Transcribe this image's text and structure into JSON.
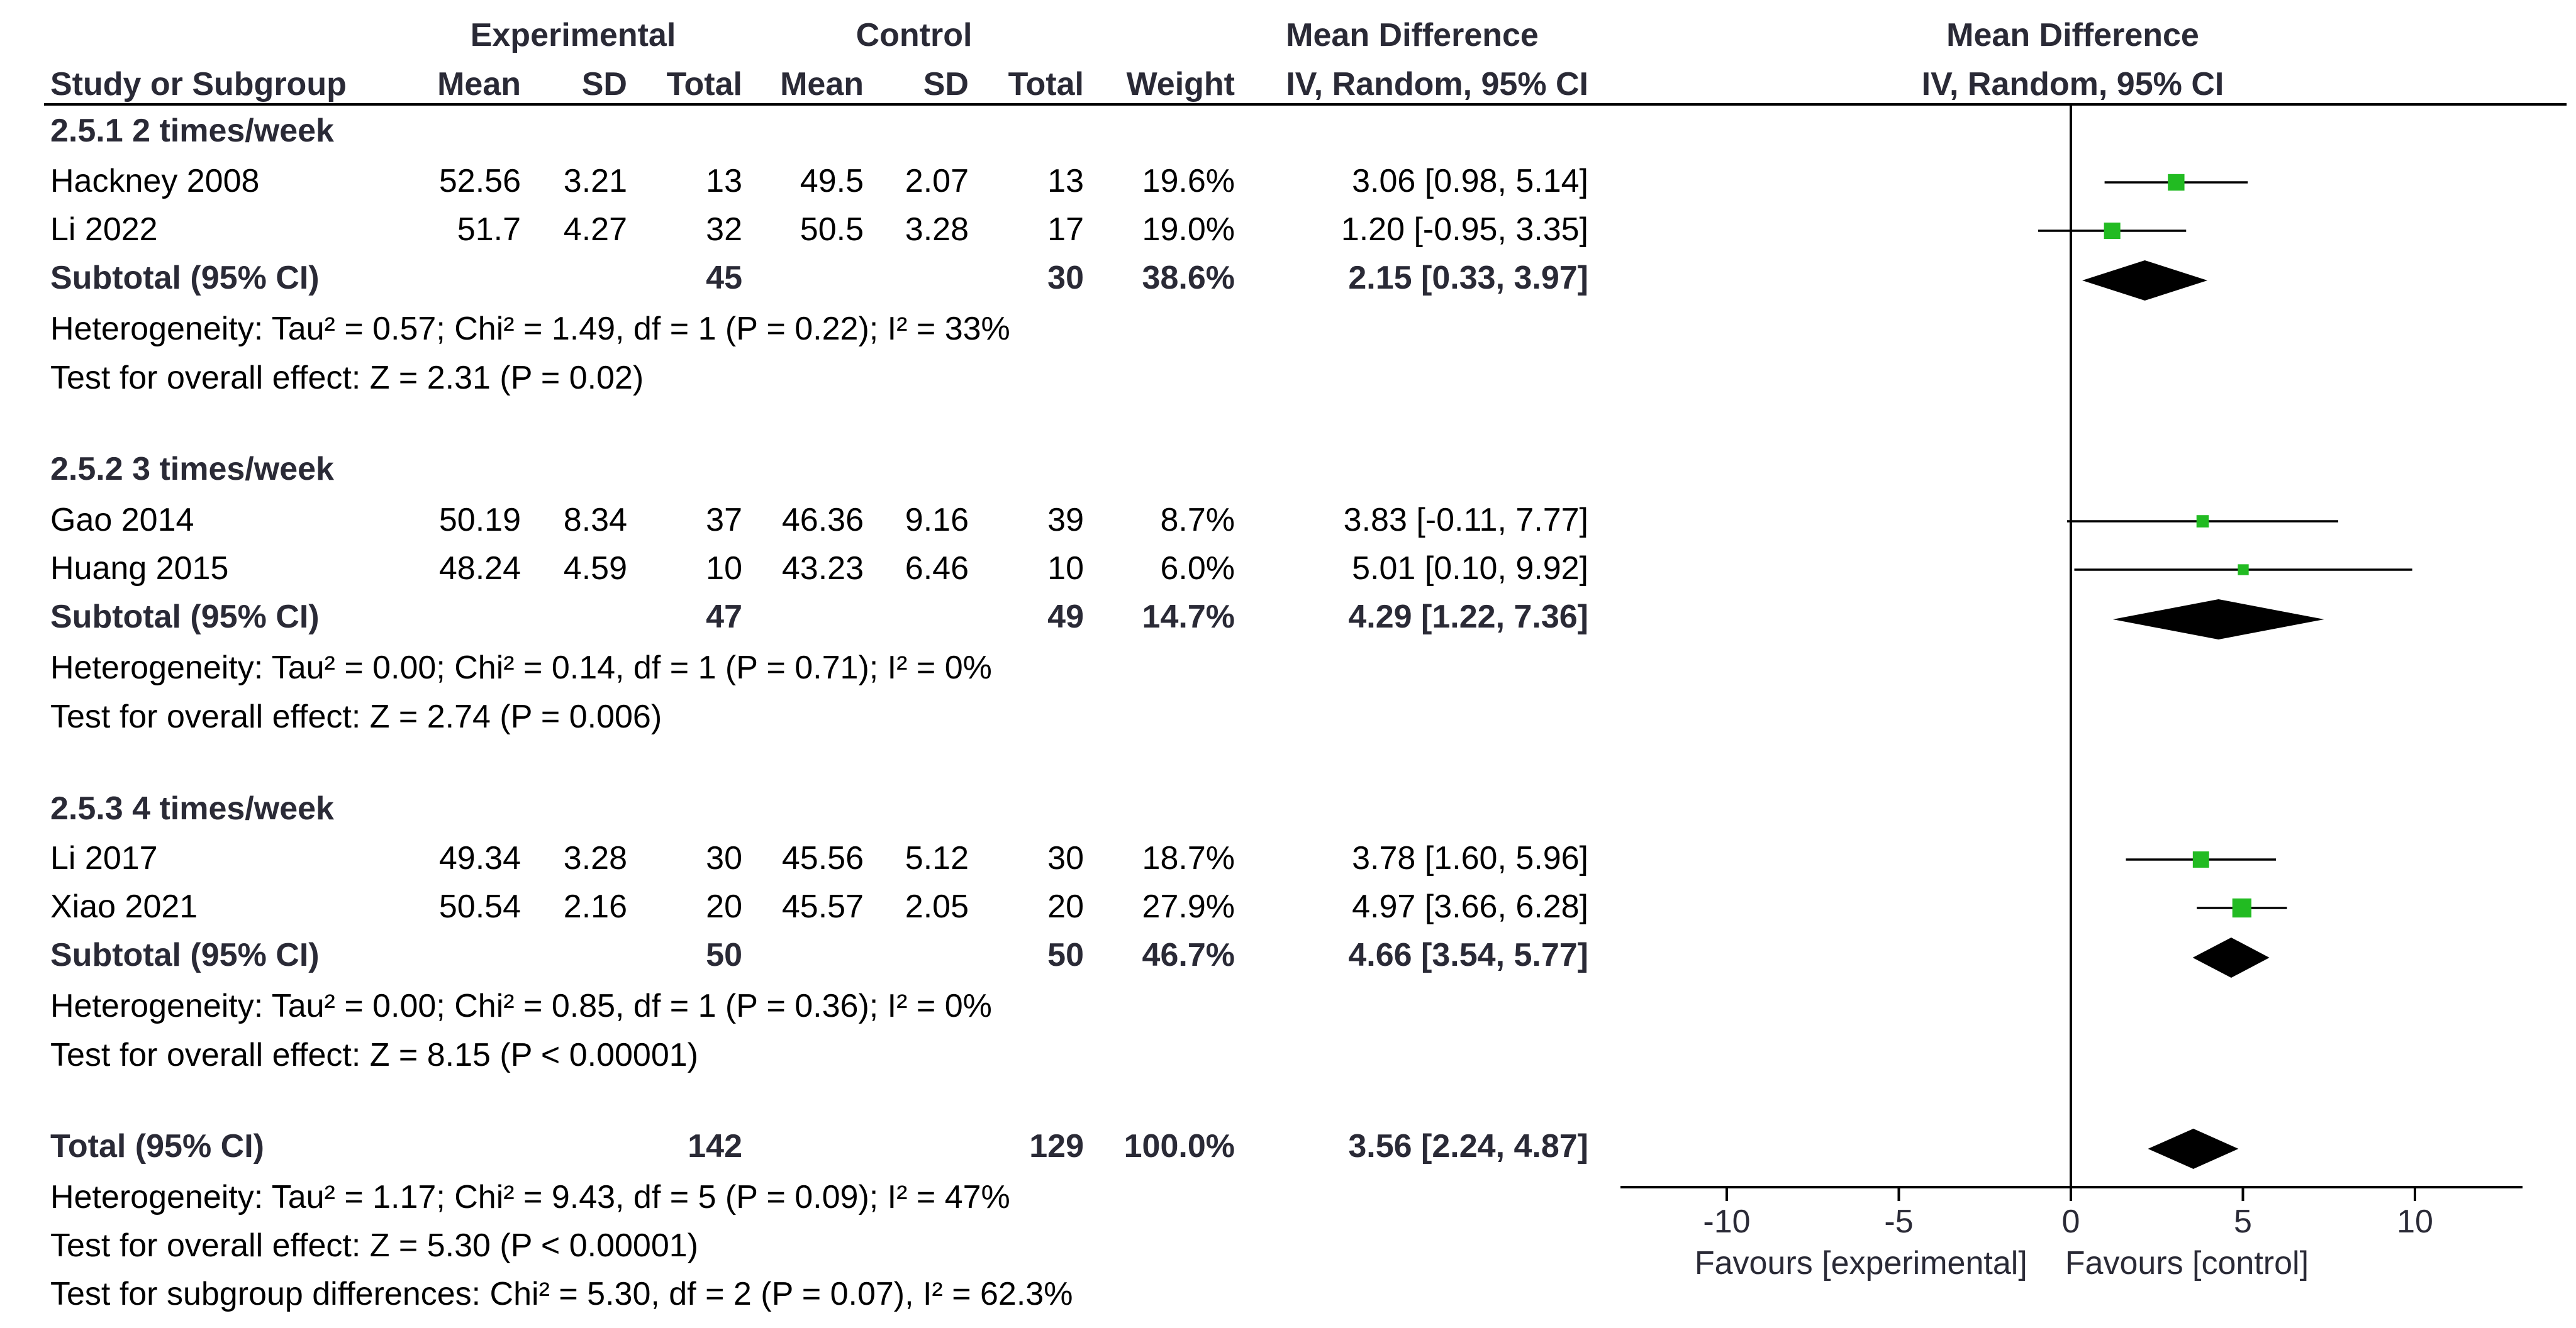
{
  "header": {
    "group_experimental": "Experimental",
    "group_control": "Control",
    "group_md": "Mean Difference",
    "col_study": "Study or Subgroup",
    "col_mean_e": "Mean",
    "col_sd_e": "SD",
    "col_total_e": "Total",
    "col_mean_c": "Mean",
    "col_sd_c": "SD",
    "col_total_c": "Total",
    "col_weight": "Weight",
    "col_ci": "IV, Random, 95% CI",
    "plot_title": "Mean Difference",
    "plot_subtitle": "IV, Random, 95% CI"
  },
  "subgroups": [
    {
      "title": "2.5.1 2 times/week",
      "studies": [
        {
          "study": "Hackney 2008",
          "mean_e": "52.56",
          "sd_e": "3.21",
          "total_e": "13",
          "mean_c": "49.5",
          "sd_c": "2.07",
          "total_c": "13",
          "weight": "19.6%",
          "ci_text": "3.06 [0.98, 5.14]"
        },
        {
          "study": "Li 2022",
          "mean_e": "51.7",
          "sd_e": "4.27",
          "total_e": "32",
          "mean_c": "50.5",
          "sd_c": "3.28",
          "total_c": "17",
          "weight": "19.0%",
          "ci_text": "1.20 [-0.95, 3.35]"
        }
      ],
      "subtotal": {
        "label": "Subtotal (95% CI)",
        "total_e": "45",
        "total_c": "30",
        "weight": "38.6%",
        "ci_text": "2.15 [0.33, 3.97]"
      },
      "heterogeneity": "Heterogeneity: Tau² = 0.57; Chi² = 1.49, df = 1 (P = 0.22); I² = 33%",
      "overall": "Test for overall effect: Z = 2.31 (P = 0.02)"
    },
    {
      "title": "2.5.2 3 times/week",
      "studies": [
        {
          "study": "Gao 2014",
          "mean_e": "50.19",
          "sd_e": "8.34",
          "total_e": "37",
          "mean_c": "46.36",
          "sd_c": "9.16",
          "total_c": "39",
          "weight": "8.7%",
          "ci_text": "3.83 [-0.11, 7.77]"
        },
        {
          "study": "Huang 2015",
          "mean_e": "48.24",
          "sd_e": "4.59",
          "total_e": "10",
          "mean_c": "43.23",
          "sd_c": "6.46",
          "total_c": "10",
          "weight": "6.0%",
          "ci_text": "5.01 [0.10, 9.92]"
        }
      ],
      "subtotal": {
        "label": "Subtotal (95% CI)",
        "total_e": "47",
        "total_c": "49",
        "weight": "14.7%",
        "ci_text": "4.29 [1.22, 7.36]"
      },
      "heterogeneity": "Heterogeneity: Tau² = 0.00; Chi² = 0.14, df = 1 (P = 0.71); I² = 0%",
      "overall": "Test for overall effect: Z = 2.74 (P = 0.006)"
    },
    {
      "title": "2.5.3 4 times/week",
      "studies": [
        {
          "study": "Li 2017",
          "mean_e": "49.34",
          "sd_e": "3.28",
          "total_e": "30",
          "mean_c": "45.56",
          "sd_c": "5.12",
          "total_c": "30",
          "weight": "18.7%",
          "ci_text": "3.78 [1.60, 5.96]"
        },
        {
          "study": "Xiao 2021",
          "mean_e": "50.54",
          "sd_e": "2.16",
          "total_e": "20",
          "mean_c": "45.57",
          "sd_c": "2.05",
          "total_c": "20",
          "weight": "27.9%",
          "ci_text": "4.97 [3.66, 6.28]"
        }
      ],
      "subtotal": {
        "label": "Subtotal (95% CI)",
        "total_e": "50",
        "total_c": "50",
        "weight": "46.7%",
        "ci_text": "4.66 [3.54, 5.77]"
      },
      "heterogeneity": "Heterogeneity: Tau² = 0.00; Chi² = 0.85, df = 1 (P = 0.36); I² = 0%",
      "overall": "Test for overall effect: Z = 8.15 (P < 0.00001)"
    }
  ],
  "total": {
    "label": "Total (95% CI)",
    "total_e": "142",
    "total_c": "129",
    "weight": "100.0%",
    "ci_text": "3.56 [2.24, 4.87]",
    "heterogeneity": "Heterogeneity: Tau² = 1.17; Chi² = 9.43, df = 5 (P = 0.09); I² = 47%",
    "overall": "Test for overall effect: Z = 5.30 (P < 0.00001)",
    "subgroup_diff": "Test for subgroup differences: Chi² = 5.30, df = 2 (P = 0.07), I² = 62.3%"
  },
  "axis": {
    "ticks": [
      "-10",
      "-5",
      "0",
      "5",
      "10"
    ],
    "left_caption": "Favours [experimental]",
    "right_caption": "Favours [control]"
  },
  "colors": {
    "study_marker": "#22bb22",
    "diamond": "#000000",
    "text_bold": "#2a2a36"
  },
  "chart_data": {
    "type": "forest",
    "xlim": [
      -10,
      10
    ],
    "xticks": [
      -10,
      -5,
      0,
      5,
      10
    ],
    "reference_line": 0,
    "studies": [
      {
        "name": "Hackney 2008",
        "md": 3.06,
        "lo": 0.98,
        "hi": 5.14,
        "weight": 19.6,
        "subgroup": "2.5.1 2 times/week"
      },
      {
        "name": "Li 2022",
        "md": 1.2,
        "lo": -0.95,
        "hi": 3.35,
        "weight": 19.0,
        "subgroup": "2.5.1 2 times/week"
      },
      {
        "name": "Gao 2014",
        "md": 3.83,
        "lo": -0.11,
        "hi": 7.77,
        "weight": 8.7,
        "subgroup": "2.5.2 3 times/week"
      },
      {
        "name": "Huang 2015",
        "md": 5.01,
        "lo": 0.1,
        "hi": 9.92,
        "weight": 6.0,
        "subgroup": "2.5.2 3 times/week"
      },
      {
        "name": "Li 2017",
        "md": 3.78,
        "lo": 1.6,
        "hi": 5.96,
        "weight": 18.7,
        "subgroup": "2.5.3 4 times/week"
      },
      {
        "name": "Xiao 2021",
        "md": 4.97,
        "lo": 3.66,
        "hi": 6.28,
        "weight": 27.9,
        "subgroup": "2.5.3 4 times/week"
      }
    ],
    "pooled": [
      {
        "name": "Subtotal (95% CI) 2.5.1",
        "md": 2.15,
        "lo": 0.33,
        "hi": 3.97
      },
      {
        "name": "Subtotal (95% CI) 2.5.2",
        "md": 4.29,
        "lo": 1.22,
        "hi": 7.36
      },
      {
        "name": "Subtotal (95% CI) 2.5.3",
        "md": 4.66,
        "lo": 3.54,
        "hi": 5.77
      },
      {
        "name": "Total (95% CI)",
        "md": 3.56,
        "lo": 2.24,
        "hi": 4.87
      }
    ]
  }
}
